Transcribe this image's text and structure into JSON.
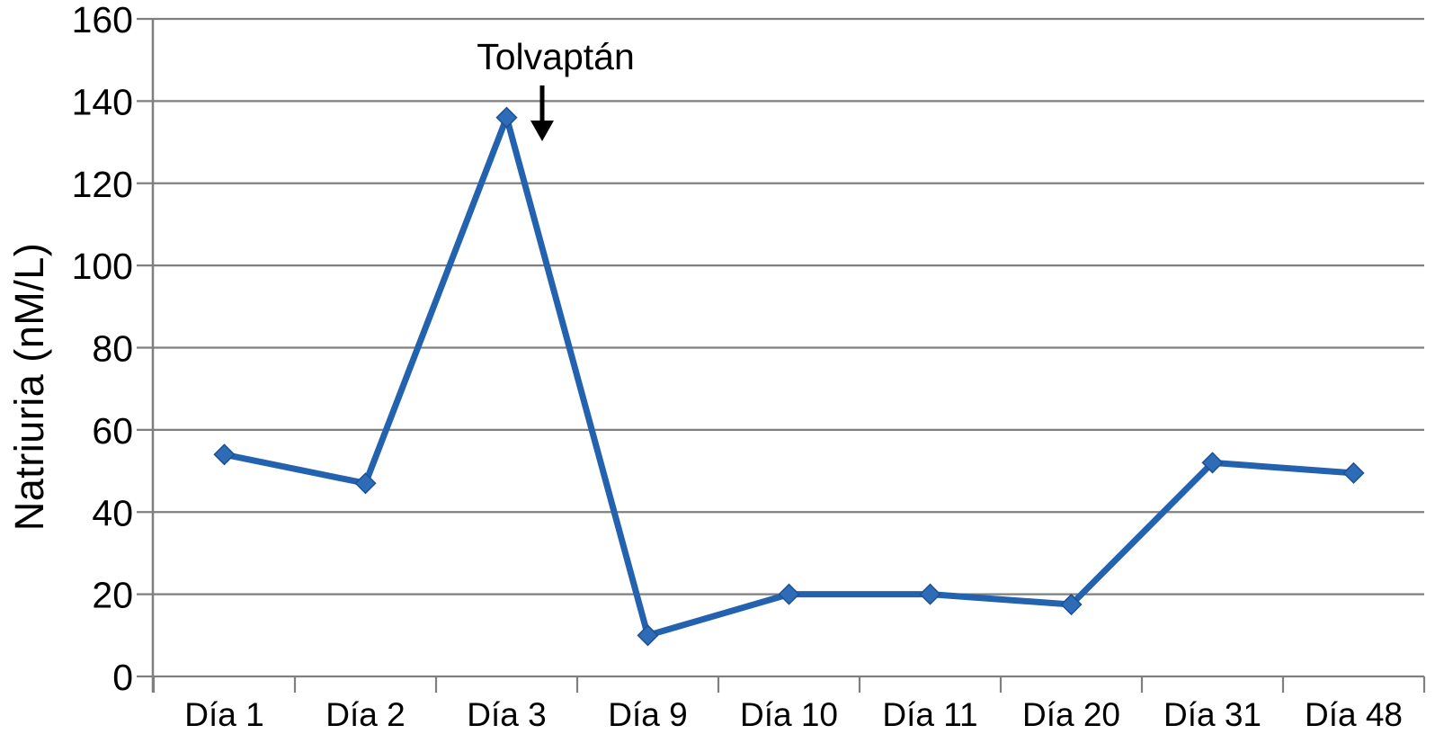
{
  "chart_data": {
    "type": "line",
    "title": "",
    "xlabel": "",
    "ylabel": "Natriuria (nM/L)",
    "categories": [
      "Día 1",
      "Día 2",
      "Día 3",
      "Día 9",
      "Día 10",
      "Día 11",
      "Día 20",
      "Día 31",
      "Día 48"
    ],
    "series": [
      {
        "name": "Natriuria",
        "values": [
          54,
          47,
          136,
          10,
          20,
          20,
          17.5,
          52,
          49.5
        ]
      }
    ],
    "ylim": [
      0,
      160
    ],
    "yticks": [
      0,
      20,
      40,
      60,
      80,
      100,
      120,
      140,
      160
    ],
    "grid": true,
    "legend_position": "none",
    "marker": "diamond",
    "annotation": {
      "text": "Tolvaptán",
      "arrow": "down",
      "near_category": "Día 3"
    },
    "colors": {
      "line": "#2362ae",
      "marker_fill": "#2e6cb8",
      "marker_edge": "#1d4f93",
      "gridline": "#7f7f7f",
      "text": "#000000",
      "background": "#ffffff",
      "annotation_arrow": "#000000"
    }
  }
}
